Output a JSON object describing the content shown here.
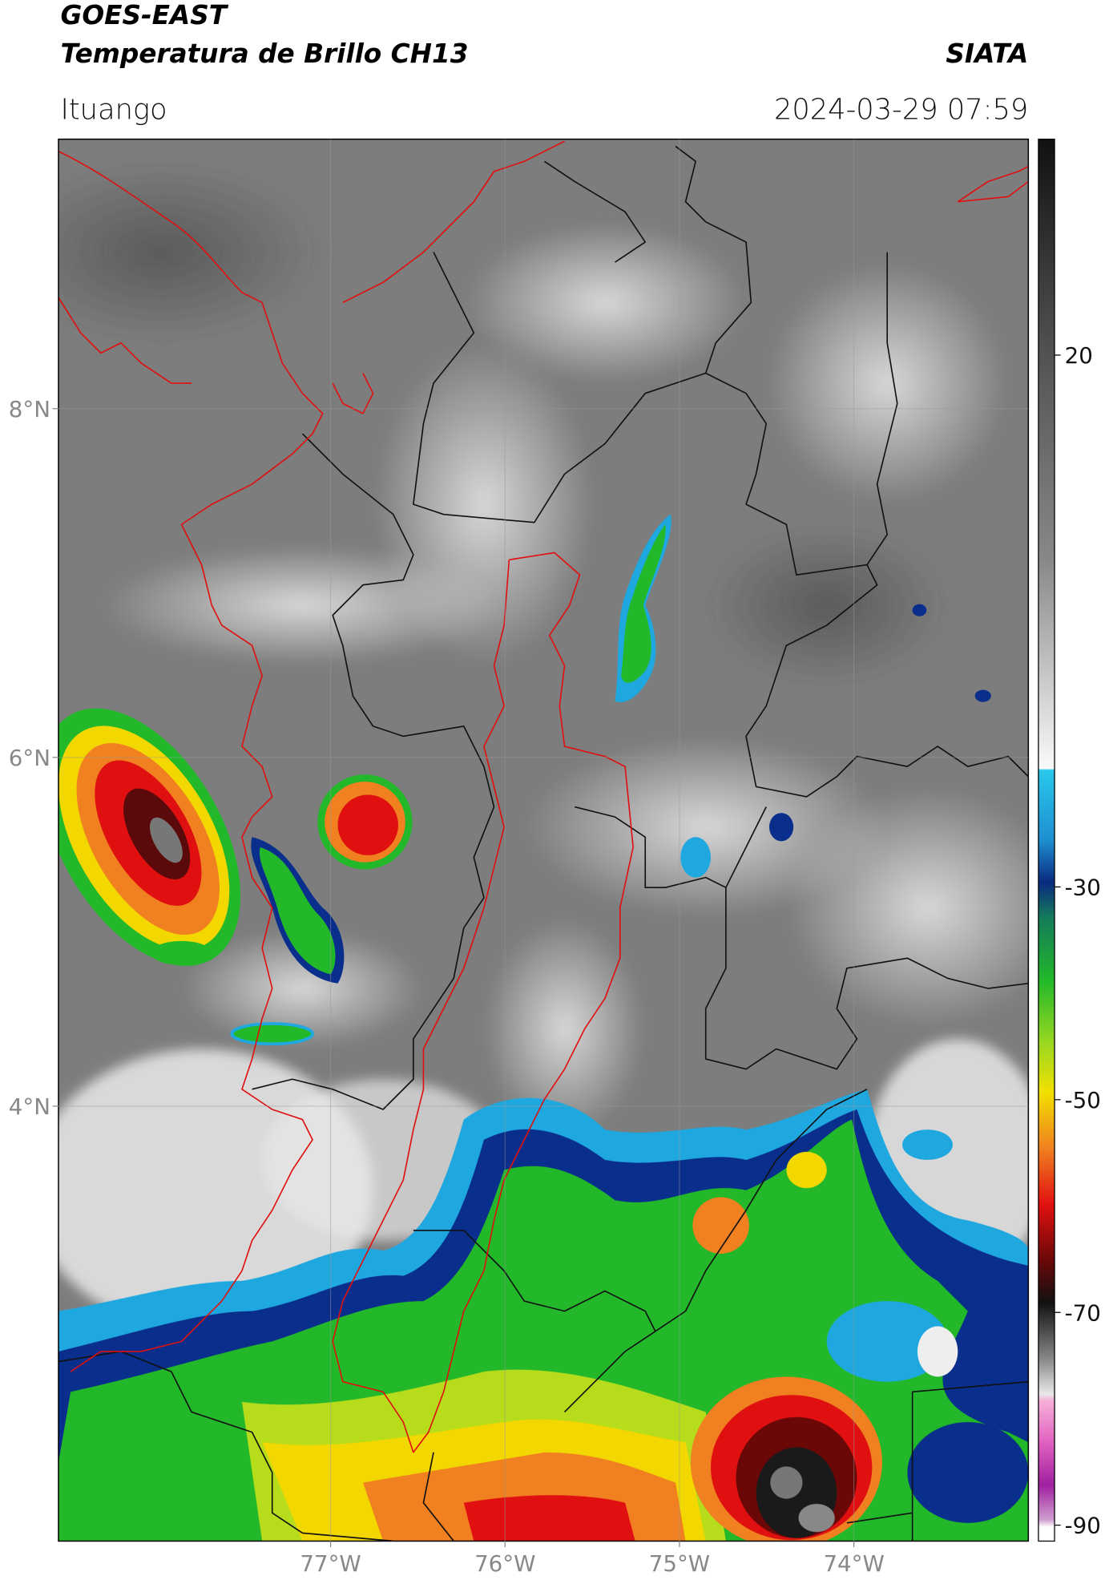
{
  "header": {
    "satellite": "GOES-EAST",
    "product": "Temperatura de Brillo CH13",
    "source": "SIATA",
    "location": "Ituango",
    "timestamp": "2024-03-29 07:59"
  },
  "map": {
    "lonlim": [
      -78.56,
      -73.0
    ],
    "latlim": [
      1.506,
      9.545
    ],
    "xticks": [
      {
        "value": -77,
        "label": "77°W"
      },
      {
        "value": -76,
        "label": "76°W"
      },
      {
        "value": -75,
        "label": "75°W"
      },
      {
        "value": -74,
        "label": "74°W"
      }
    ],
    "yticks": [
      {
        "value": 8,
        "label": "8°N"
      },
      {
        "value": 6,
        "label": "6°N"
      },
      {
        "value": 4,
        "label": "4°N"
      }
    ],
    "grid": true
  },
  "colorbar": {
    "lim": [
      -91.5,
      40.3
    ],
    "ticks": [
      20,
      -30,
      -50,
      -70,
      -90
    ]
  }
}
